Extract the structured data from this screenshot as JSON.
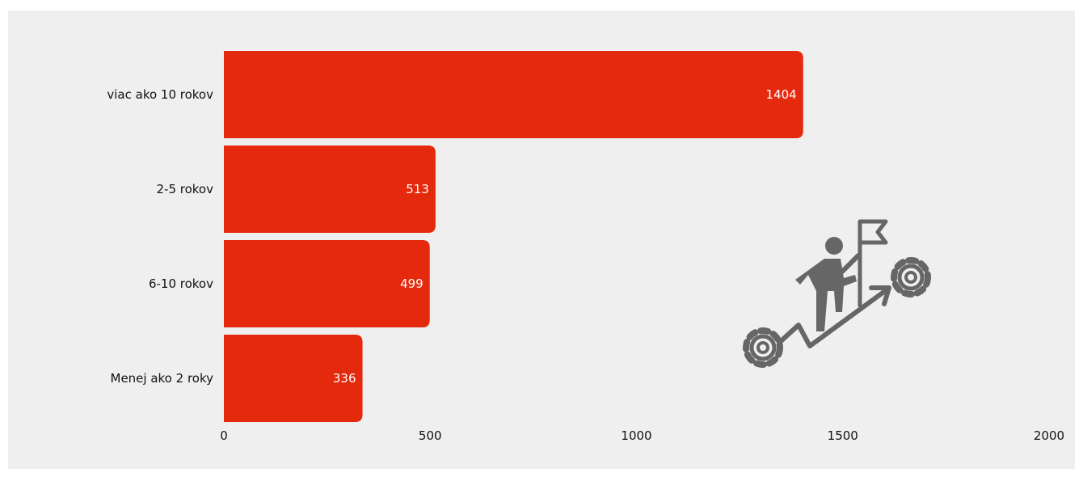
{
  "chart_data": {
    "type": "bar",
    "orientation": "horizontal",
    "categories": [
      "viac ako 10 rokov",
      "2-5 rokov",
      "6-10 rokov",
      "Menej ako 2 roky"
    ],
    "values": [
      1404,
      513,
      499,
      336
    ],
    "data_labels": [
      "1404",
      "513",
      "499",
      "336"
    ],
    "xlim": [
      0,
      2000
    ],
    "xticks": [
      0,
      500,
      1000,
      1500,
      2000
    ],
    "xtick_labels": [
      "0",
      "500",
      "1000",
      "1500",
      "2000"
    ],
    "grid": false,
    "legend": "none",
    "bar_color": "#e5290c",
    "background_color": "#efefef"
  },
  "decoration": {
    "icon": "climbing-person-gears-icon",
    "color": "#666666"
  }
}
